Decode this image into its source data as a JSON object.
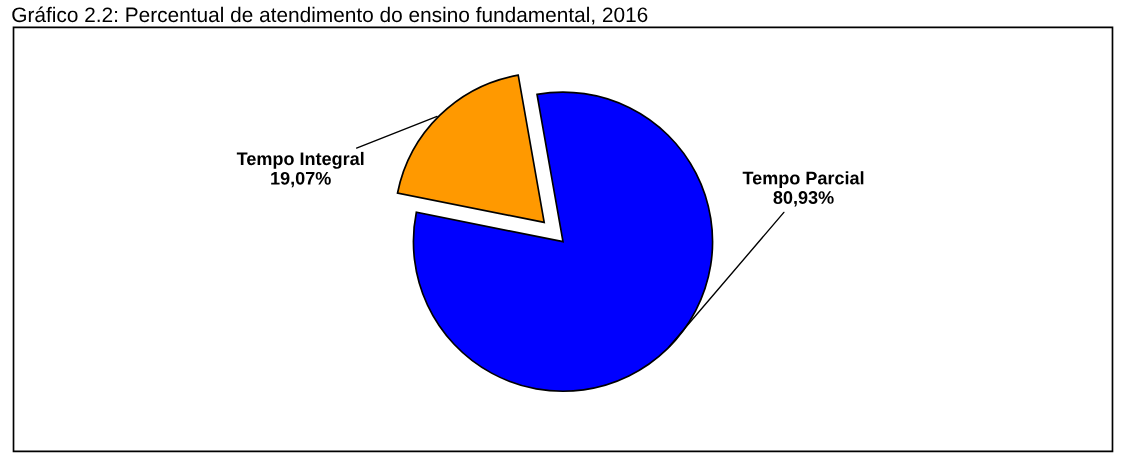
{
  "chart_data": {
    "type": "pie",
    "title": "Gráfico 2.2: Percentual de atendimento do ensino fundamental, 2016",
    "categories": [
      "Tempo Parcial",
      "Tempo Integral"
    ],
    "values": [
      80.93,
      19.07
    ],
    "value_labels": [
      "80,93%",
      "19,07%"
    ],
    "colors": [
      "#0000ff",
      "#ff9900"
    ]
  }
}
